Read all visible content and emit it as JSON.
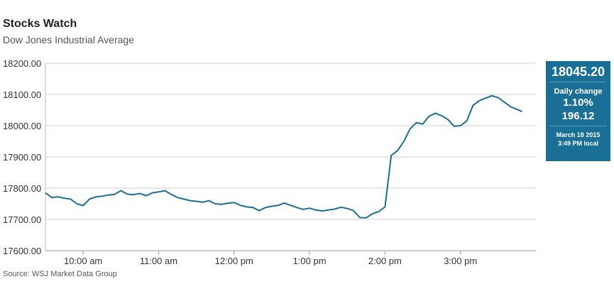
{
  "header": {
    "title": "Stocks Watch",
    "subtitle": "Dow Jones Industrial Average"
  },
  "source": "Source: WSJ Market Data Group",
  "panel": {
    "price": "18045.20",
    "daily_change_label": "Daily change",
    "percent": "1.10%",
    "points": "196.12",
    "date": "March 18 2015",
    "time": "3:49 PM local",
    "color": "#1a6f97"
  },
  "chart_data": {
    "type": "line",
    "title": "Stocks Watch",
    "subtitle": "Dow Jones Industrial Average",
    "xlabel": "",
    "ylabel": "",
    "ylim": [
      17600,
      18200
    ],
    "xlim": [
      "9:30 am",
      "4:00 pm"
    ],
    "y_ticks": [
      "17600.00",
      "17700.00",
      "17800.00",
      "17900.00",
      "18000.00",
      "18100.00",
      "18200.00"
    ],
    "x_ticks": [
      "10:00 am",
      "11:00 am",
      "12:00 pm",
      "1:00 pm",
      "2:00 pm",
      "3:00 pm"
    ],
    "grid": "horizontal",
    "line_color": "#1a6f97",
    "series": [
      {
        "name": "",
        "x": [
          "9:30 am",
          "9:35 am",
          "9:40 am",
          "9:45 am",
          "9:50 am",
          "9:55 am",
          "10:00 am",
          "10:05 am",
          "10:10 am",
          "10:15 am",
          "10:20 am",
          "10:25 am",
          "10:30 am",
          "10:35 am",
          "10:40 am",
          "10:45 am",
          "10:50 am",
          "10:55 am",
          "11:00 am",
          "11:05 am",
          "11:10 am",
          "11:15 am",
          "11:20 am",
          "11:25 am",
          "11:30 am",
          "11:35 am",
          "11:40 am",
          "11:45 am",
          "11:50 am",
          "11:55 am",
          "12:00 pm",
          "12:05 pm",
          "12:10 pm",
          "12:15 pm",
          "12:20 pm",
          "12:25 pm",
          "12:30 pm",
          "12:35 pm",
          "12:40 pm",
          "12:45 pm",
          "12:50 pm",
          "12:55 pm",
          "1:00 pm",
          "1:05 pm",
          "1:10 pm",
          "1:15 pm",
          "1:20 pm",
          "1:25 pm",
          "1:30 pm",
          "1:35 pm",
          "1:40 pm",
          "1:45 pm",
          "1:50 pm",
          "1:55 pm",
          "2:00 pm",
          "2:05 pm",
          "2:10 pm",
          "2:15 pm",
          "2:20 pm",
          "2:25 pm",
          "2:30 pm",
          "2:35 pm",
          "2:40 pm",
          "2:45 pm",
          "2:50 pm",
          "2:55 pm",
          "3:00 pm",
          "3:05 pm",
          "3:10 pm",
          "3:15 pm",
          "3:20 pm",
          "3:25 pm",
          "3:30 pm",
          "3:35 pm",
          "3:40 pm",
          "3:45 pm",
          "3:49 pm"
        ],
        "values": [
          17785,
          17770,
          17772,
          17768,
          17765,
          17750,
          17744,
          17765,
          17772,
          17774,
          17778,
          17780,
          17792,
          17781,
          17779,
          17783,
          17776,
          17785,
          17788,
          17792,
          17780,
          17770,
          17765,
          17760,
          17758,
          17755,
          17760,
          17750,
          17748,
          17752,
          17754,
          17745,
          17740,
          17738,
          17728,
          17738,
          17742,
          17745,
          17752,
          17745,
          17738,
          17732,
          17736,
          17730,
          17727,
          17730,
          17733,
          17739,
          17735,
          17728,
          17706,
          17705,
          17718,
          17725,
          17740,
          17905,
          17920,
          17950,
          17990,
          18010,
          18005,
          18030,
          18040,
          18032,
          18020,
          17998,
          18000,
          18015,
          18065,
          18080,
          18088,
          18096,
          18090,
          18075,
          18060,
          18052,
          18045.2
        ]
      }
    ]
  }
}
